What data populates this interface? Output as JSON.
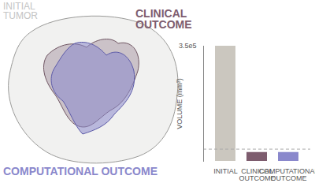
{
  "chart_data": {
    "type": "bar",
    "categories": [
      "INITIAL",
      "CLINICAL\nOUTCOME",
      "COMPUTATIONAL\nOUTCOME"
    ],
    "values": [
      350000,
      27000,
      27000
    ],
    "colors": [
      "#cbc7bf",
      "#7d5c6e",
      "#8a88cc"
    ],
    "ylabel": "VOLUME (mm³)",
    "ylim": [
      0,
      350000
    ],
    "yticks": [
      {
        "value": 350000,
        "label": "3.5e5"
      }
    ],
    "reference_value": 37000,
    "grid": false
  },
  "illustration": {
    "labels": [
      {
        "text": "INITIAL\nTUMOR",
        "color": "#c4c4c4"
      },
      {
        "text": "CLINICAL\nOUTCOME",
        "color": "#7d5c6e"
      },
      {
        "text": "COMPUTATIONAL OUTCOME",
        "color": "#8a88cc"
      }
    ]
  }
}
